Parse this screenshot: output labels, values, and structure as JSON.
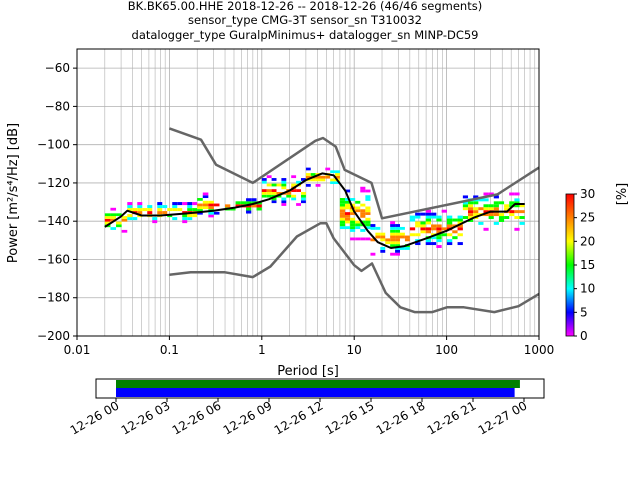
{
  "chart_data": {
    "type": "heatmap",
    "title_lines": [
      "BK.BK65.00.HHE   2018-12-26 -- 2018-12-26  (46/46 segments)",
      "sensor_type CMG-3T sensor_sn T310032",
      "datalogger_type GuralpMinimus+ datalogger_sn MINP-DC59"
    ],
    "xlabel": "Period [s]",
    "ylabel": "Power [m²/s⁴/Hz] [dB]",
    "x_scale": "log",
    "xlim": [
      0.01,
      1000
    ],
    "ylim": [
      -200,
      -50
    ],
    "x_ticks": [
      {
        "value": 0.01,
        "label": "0.01"
      },
      {
        "value": 0.1,
        "label": "0.1"
      },
      {
        "value": 1,
        "label": "1"
      },
      {
        "value": 10,
        "label": "10"
      },
      {
        "value": 100,
        "label": "100"
      },
      {
        "value": 1000,
        "label": "1000"
      }
    ],
    "y_ticks": [
      {
        "value": -60,
        "label": "−60"
      },
      {
        "value": -80,
        "label": "−80"
      },
      {
        "value": -100,
        "label": "−100"
      },
      {
        "value": -120,
        "label": "−120"
      },
      {
        "value": -140,
        "label": "−140"
      },
      {
        "value": -160,
        "label": "−160"
      },
      {
        "value": -180,
        "label": "−180"
      },
      {
        "value": -200,
        "label": "−200"
      }
    ],
    "grid": true,
    "series": [
      {
        "role": "noise-model-high",
        "color": "#666666",
        "points": [
          [
            0.1,
            -91.5
          ],
          [
            0.22,
            -97.4
          ],
          [
            0.32,
            -110.5
          ],
          [
            0.8,
            -120.0
          ],
          [
            3.8,
            -98.0
          ],
          [
            4.6,
            -96.5
          ],
          [
            6.3,
            -101.0
          ],
          [
            7.9,
            -113.2
          ],
          [
            15.4,
            -120.0
          ],
          [
            20.0,
            -138.5
          ],
          [
            354.8,
            -126.0
          ],
          [
            1000.0,
            -112.0
          ]
        ]
      },
      {
        "role": "noise-model-low",
        "color": "#666666",
        "points": [
          [
            0.1,
            -168.0
          ],
          [
            0.17,
            -166.7
          ],
          [
            0.4,
            -166.7
          ],
          [
            0.8,
            -169.2
          ],
          [
            1.24,
            -163.7
          ],
          [
            2.4,
            -148.0
          ],
          [
            4.3,
            -141.1
          ],
          [
            5.0,
            -141.1
          ],
          [
            6.0,
            -149.0
          ],
          [
            10.0,
            -163.0
          ],
          [
            12.0,
            -166.0
          ],
          [
            15.6,
            -162.1
          ],
          [
            21.9,
            -177.5
          ],
          [
            31.6,
            -185.0
          ],
          [
            45.0,
            -187.5
          ],
          [
            70.0,
            -187.5
          ],
          [
            101.0,
            -185.0
          ],
          [
            154.0,
            -185.0
          ],
          [
            328.0,
            -187.5
          ],
          [
            600.0,
            -184.4
          ],
          [
            1000.0,
            -178.0
          ]
        ]
      },
      {
        "role": "mode",
        "color": "#000000",
        "points": [
          [
            0.02,
            -143.0
          ],
          [
            0.025,
            -140.0
          ],
          [
            0.03,
            -137.5
          ],
          [
            0.035,
            -134.5
          ],
          [
            0.05,
            -137.0
          ],
          [
            0.08,
            -137.0
          ],
          [
            0.15,
            -136.0
          ],
          [
            0.3,
            -134.5
          ],
          [
            0.5,
            -133.0
          ],
          [
            0.8,
            -131.0
          ],
          [
            1.2,
            -128.5
          ],
          [
            2.0,
            -124.0
          ],
          [
            3.0,
            -118.5
          ],
          [
            4.5,
            -115.0
          ],
          [
            6.0,
            -116.0
          ],
          [
            8.0,
            -124.0
          ],
          [
            10.0,
            -135.0
          ],
          [
            14.0,
            -145.0
          ],
          [
            18.0,
            -151.0
          ],
          [
            25.0,
            -154.0
          ],
          [
            35.0,
            -153.0
          ],
          [
            60.0,
            -149.0
          ],
          [
            100.0,
            -145.0
          ],
          [
            200.0,
            -138.0
          ],
          [
            300.0,
            -135.0
          ],
          [
            450.0,
            -135.0
          ],
          [
            550.0,
            -131.0
          ],
          [
            700.0,
            -131.0
          ]
        ]
      }
    ],
    "density_bands": [
      {
        "x": [
          0.02,
          0.035
        ],
        "y": [
          -146,
          -133
        ]
      },
      {
        "x": [
          0.035,
          0.2
        ],
        "y": [
          -141,
          -130
        ]
      },
      {
        "x": [
          0.2,
          0.4
        ],
        "y": [
          -138,
          -125
        ]
      },
      {
        "x": [
          0.4,
          1.0
        ],
        "y": [
          -136,
          -128
        ]
      },
      {
        "x": [
          1.0,
          3.0
        ],
        "y": [
          -132,
          -116
        ]
      },
      {
        "x": [
          3.0,
          7.0
        ],
        "y": [
          -122,
          -112
        ]
      },
      {
        "x": [
          7.0,
          15.0
        ],
        "y": [
          -150,
          -122
        ]
      },
      {
        "x": [
          15.0,
          40.0
        ],
        "y": [
          -158,
          -140
        ]
      },
      {
        "x": [
          40.0,
          150.0
        ],
        "y": [
          -154,
          -134
        ]
      },
      {
        "x": [
          150.0,
          700.0
        ],
        "y": [
          -145,
          -125
        ]
      }
    ],
    "colorbar": {
      "label": "[%]",
      "range": [
        0,
        30
      ],
      "ticks": [
        "0",
        "5",
        "10",
        "15",
        "20",
        "25",
        "30"
      ],
      "colors": [
        "#ff00ff",
        "#0000ff",
        "#00ffff",
        "#00ff00",
        "#ffff00",
        "#ff8000",
        "#ff0000"
      ]
    },
    "coverage": {
      "ticks": [
        "12-26 00",
        "12-26 03",
        "12-26 06",
        "12-26 09",
        "12-26 12",
        "12-26 15",
        "12-26 18",
        "12-26 21",
        "12-27 00"
      ],
      "start_fraction": 0.0,
      "green_end_fraction": 0.99,
      "blue_end_fraction": 0.977,
      "colors": {
        "green": "#008000",
        "blue": "#0000ff"
      }
    }
  }
}
